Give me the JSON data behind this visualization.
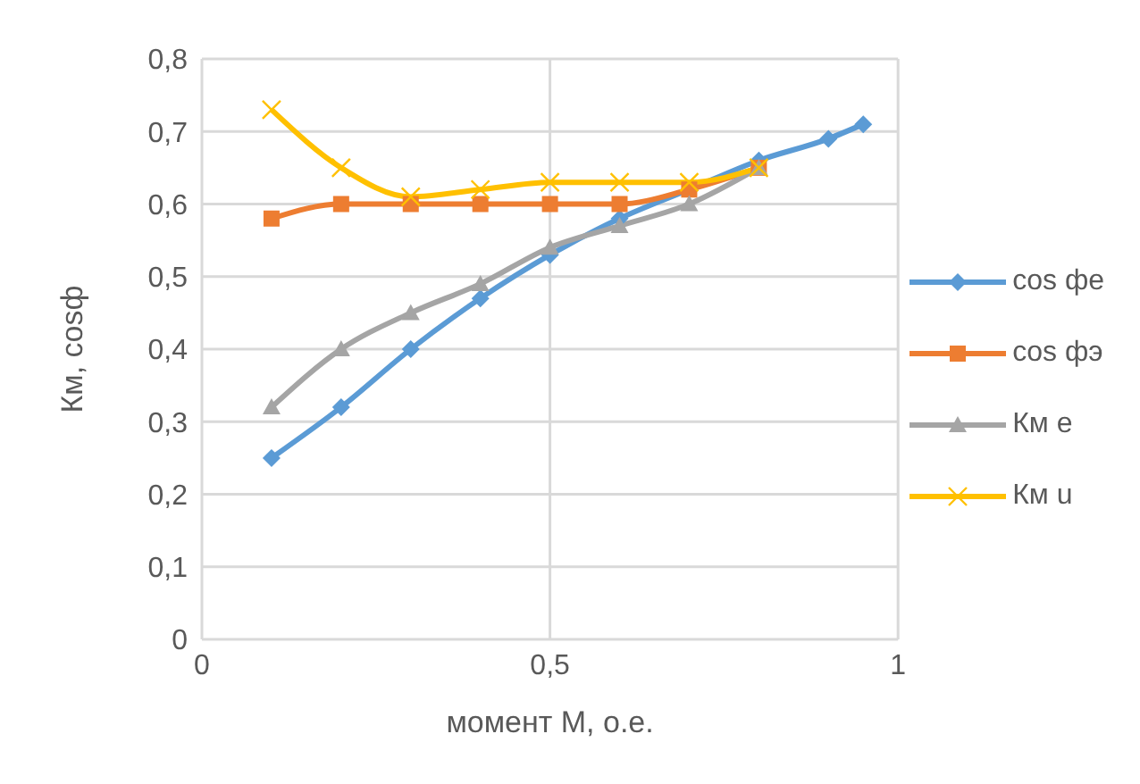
{
  "chart_data": {
    "type": "line",
    "xlabel": "момент М, о.е.",
    "ylabel": "Км, cosф",
    "xlim": [
      0,
      1
    ],
    "xticks": [
      0,
      {
        "value": 0.5,
        "label": "0,5"
      },
      1
    ],
    "ylim": [
      0,
      0.8
    ],
    "yticks": [
      0,
      {
        "value": 0.1,
        "label": "0,1"
      },
      {
        "value": 0.2,
        "label": "0,2"
      },
      {
        "value": 0.3,
        "label": "0,3"
      },
      {
        "value": 0.4,
        "label": "0,4"
      },
      {
        "value": 0.5,
        "label": "0,5"
      },
      {
        "value": 0.6,
        "label": "0,6"
      },
      {
        "value": 0.7,
        "label": "0,7"
      },
      {
        "value": 0.8,
        "label": "0,8"
      }
    ],
    "grid": true,
    "legend": "right",
    "line_style": "solid",
    "series": [
      {
        "name": "cos фе",
        "color": "#5b9bd5",
        "marker": "diamond",
        "x": [
          0.1,
          0.2,
          0.3,
          0.4,
          0.5,
          0.6,
          0.7,
          0.8,
          0.9,
          0.95
        ],
        "values": [
          0.25,
          0.32,
          0.4,
          0.47,
          0.53,
          0.58,
          0.62,
          0.66,
          0.69,
          0.71
        ]
      },
      {
        "name": "cos фэ",
        "color": "#ed7d31",
        "marker": "square",
        "x": [
          0.1,
          0.2,
          0.3,
          0.4,
          0.5,
          0.6,
          0.7,
          0.8
        ],
        "values": [
          0.58,
          0.6,
          0.6,
          0.6,
          0.6,
          0.6,
          0.62,
          0.65
        ]
      },
      {
        "name": "Км е",
        "color": "#a5a5a5",
        "marker": "triangle",
        "x": [
          0.1,
          0.2,
          0.3,
          0.4,
          0.5,
          0.6,
          0.7,
          0.8
        ],
        "values": [
          0.32,
          0.4,
          0.45,
          0.49,
          0.54,
          0.57,
          0.6,
          0.65
        ]
      },
      {
        "name": "Км u",
        "color": "#ffc000",
        "marker": "cross",
        "x": [
          0.1,
          0.2,
          0.3,
          0.4,
          0.5,
          0.6,
          0.7,
          0.8
        ],
        "values": [
          0.73,
          0.65,
          0.61,
          0.62,
          0.63,
          0.63,
          0.63,
          0.65
        ]
      }
    ]
  }
}
